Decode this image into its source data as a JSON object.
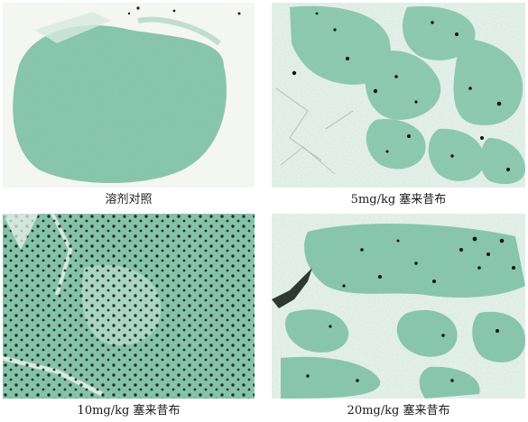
{
  "figure": {
    "panels": [
      {
        "caption": "溶剂对照"
      },
      {
        "caption": "5mg/kg 塞来昔布"
      },
      {
        "caption": "10mg/kg 塞来昔布"
      },
      {
        "caption": "20mg/kg 塞来昔布"
      }
    ]
  },
  "colors": {
    "background": "#ffffff",
    "tissue_green": "#7fc1a6",
    "tissue_light": "#b7dccb",
    "nuclei_dark": "#101a14"
  }
}
